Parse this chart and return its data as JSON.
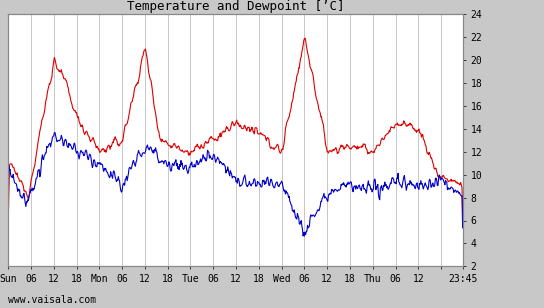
{
  "title": "Temperature and Dewpoint [’C]",
  "ylim": [
    2,
    24
  ],
  "yticks": [
    2,
    4,
    6,
    8,
    10,
    12,
    14,
    16,
    18,
    20,
    22,
    24
  ],
  "bg_color": "#c8c8c8",
  "plot_bg_color": "#ffffff",
  "grid_color": "#b0b0b0",
  "temp_color": "#dd0000",
  "dew_color": "#0000cc",
  "line_width": 0.8,
  "watermark": "www.vaisala.com",
  "xlim": [
    0,
    119.75
  ],
  "xtick_positions": [
    0,
    6,
    12,
    18,
    24,
    30,
    36,
    42,
    48,
    54,
    60,
    66,
    72,
    78,
    84,
    90,
    96,
    102,
    108,
    119.75
  ],
  "xtick_labels": [
    "Sun",
    "06",
    "12",
    "18",
    "Mon",
    "06",
    "12",
    "18",
    "Tue",
    "06",
    "12",
    "18",
    "Wed",
    "06",
    "12",
    "18",
    "Thu",
    "06",
    "12",
    "23:45"
  ],
  "title_fontsize": 9,
  "tick_fontsize": 7,
  "watermark_fontsize": 7
}
